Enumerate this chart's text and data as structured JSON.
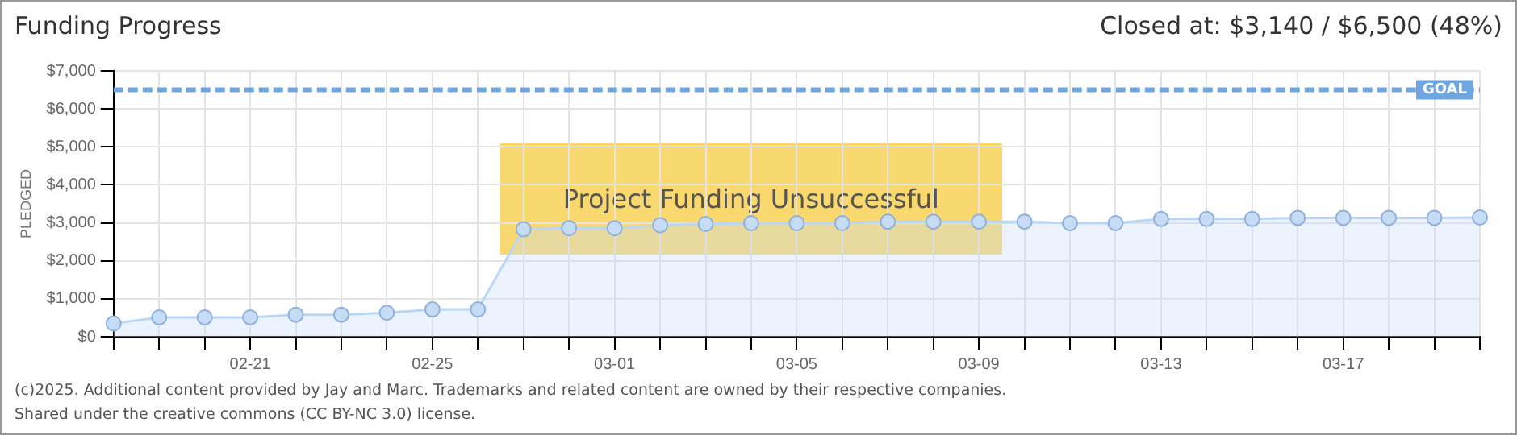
{
  "chart_data": {
    "type": "area",
    "title": "Funding Progress",
    "ylabel": "PLEDGED",
    "categories": [
      null,
      null,
      null,
      "02-21",
      null,
      null,
      null,
      "02-25",
      null,
      null,
      null,
      "03-01",
      null,
      null,
      null,
      "03-05",
      null,
      null,
      null,
      "03-09",
      null,
      null,
      null,
      "03-13",
      null,
      null,
      null,
      "03-17",
      null,
      null,
      null
    ],
    "series": [
      {
        "color": "#b9d7f5",
        "values": [
          350,
          510,
          510,
          510,
          580,
          580,
          630,
          720,
          720,
          2830,
          2860,
          2860,
          2940,
          2970,
          2990,
          2990,
          2990,
          3030,
          3030,
          3030,
          3030,
          2990,
          2990,
          3100,
          3100,
          3100,
          3130,
          3130,
          3130,
          3130,
          3140
        ]
      }
    ],
    "ylim": [
      0,
      7000
    ],
    "yticks": [
      {
        "value": 0,
        "label": "$0"
      },
      {
        "value": 1000,
        "label": "$1,000"
      },
      {
        "value": 2000,
        "label": "$2,000"
      },
      {
        "value": 3000,
        "label": "$3,000"
      },
      {
        "value": 4000,
        "label": "$4,000"
      },
      {
        "value": 5000,
        "label": "$5,000"
      },
      {
        "value": 6000,
        "label": "$6,000"
      },
      {
        "value": 7000,
        "label": "$7,000"
      }
    ],
    "ref_lines": [
      {
        "axis": "y",
        "value": 6500,
        "label": "GOAL",
        "color": "#6fa6e0",
        "line_style": "dashed"
      }
    ],
    "grid": true,
    "marker": "circle",
    "legend": false,
    "annotations": [
      "Closed at: $3,140 / $6,500 (48%)",
      "Project Funding Unsuccessful",
      "(c)2025. Additional content provided by Jay and Marc. Trademarks and related content are owned by their respective companies.",
      "Shared under the creative commons (CC BY-NC 3.0) license."
    ]
  }
}
